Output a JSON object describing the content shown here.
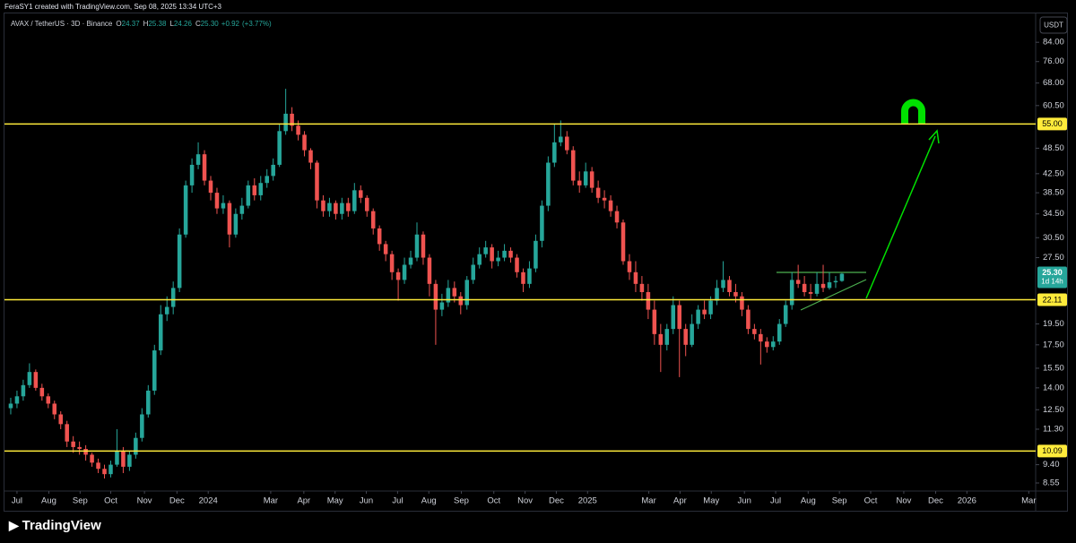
{
  "header": {
    "attribution": "FeraSY1 created with TradingView.com, Sep 08, 2025 13:34 UTC+3",
    "brand": "TradingView"
  },
  "chart_data": {
    "type": "candlestick",
    "symbol": "AVAX / TetherUS · 3D · Binance",
    "quote": [
      "O",
      "24.37",
      "H",
      "25.38",
      "L",
      "24.26",
      "C",
      "25.30",
      "+0.92",
      "(+3.77%)"
    ],
    "currency": "USDT",
    "log": true,
    "up_color": "#26a69a",
    "down_color": "#ef5350",
    "open": [
      12.6,
      12.9,
      13.4,
      14.2,
      15.2,
      14.0,
      13.4,
      12.9,
      12.2,
      11.6,
      10.6,
      10.3,
      10.2,
      9.9,
      9.5,
      9.2,
      8.95,
      9.4,
      10.1,
      9.3,
      9.9,
      10.8,
      12.2,
      13.8,
      17.0,
      20.5,
      21.3,
      23.5,
      31.0,
      40.0,
      44.5,
      47.0,
      41.0,
      38.5,
      35.5,
      36.5,
      31.0,
      34.5,
      36.0,
      40.0,
      38.0,
      40.5,
      42.0,
      44.5,
      53.0,
      58.0,
      54.5,
      52.0,
      48.0,
      45.0,
      37.0,
      35.0,
      36.5,
      34.5,
      36.5,
      35.0,
      39.0,
      37.5,
      35.0,
      32.0,
      29.5,
      28.0,
      25.5,
      24.5,
      26.5,
      27.5,
      31.0,
      27.5,
      24.0,
      21.0,
      21.8,
      23.5,
      22.5,
      21.5,
      24.5,
      26.5,
      28.0,
      29.0,
      27.0,
      27.5,
      28.5,
      27.5,
      25.5,
      24.0,
      26.0,
      30.0,
      36.0,
      45.0,
      50.0,
      51.5,
      48.0,
      41.0,
      40.0,
      43.0,
      39.5,
      37.5,
      37.0,
      35.0,
      33.0,
      27.0,
      25.5,
      24.0,
      23.0,
      21.0,
      18.5,
      17.5,
      19.0,
      21.5,
      19.0,
      17.5,
      19.5,
      21.0,
      20.5,
      22.0,
      23.5,
      24.5,
      23.0,
      22.5,
      21.0,
      19.0,
      18.5,
      17.8,
      17.3,
      17.8,
      19.5,
      21.5,
      24.5,
      24.0,
      23.0,
      22.8,
      24.0,
      23.5,
      24.2,
      24.37
    ],
    "high": [
      13.3,
      13.8,
      14.6,
      15.9,
      15.4,
      14.3,
      13.6,
      13.1,
      12.4,
      11.8,
      10.9,
      10.6,
      10.4,
      10.0,
      9.7,
      9.4,
      9.6,
      11.3,
      10.3,
      10.1,
      11.1,
      12.6,
      14.2,
      17.5,
      21.5,
      22.5,
      24.3,
      32.0,
      41.0,
      46.0,
      50.0,
      48.0,
      42.0,
      39.5,
      38.0,
      37.0,
      35.5,
      37.5,
      41.0,
      41.5,
      42.0,
      43.5,
      46.0,
      55.0,
      66.0,
      60.0,
      56.0,
      53.0,
      48.5,
      45.5,
      38.0,
      37.5,
      37.0,
      37.5,
      37.5,
      40.5,
      40.0,
      38.0,
      35.5,
      32.5,
      30.0,
      28.5,
      26.0,
      27.5,
      28.5,
      33.0,
      31.5,
      28.0,
      24.5,
      22.8,
      24.5,
      24.3,
      23.0,
      25.0,
      27.5,
      29.0,
      30.0,
      29.5,
      28.5,
      29.5,
      29.0,
      28.0,
      26.0,
      27.0,
      31.0,
      37.0,
      46.5,
      55.0,
      56.0,
      53.0,
      49.0,
      43.0,
      45.0,
      44.0,
      41.0,
      39.0,
      38.0,
      36.0,
      33.5,
      28.0,
      27.0,
      25.0,
      24.0,
      22.0,
      19.5,
      19.5,
      22.5,
      22.0,
      19.5,
      20.5,
      21.5,
      22.0,
      22.5,
      24.5,
      27.0,
      25.0,
      24.0,
      23.0,
      21.5,
      19.5,
      19.0,
      18.2,
      18.3,
      20.0,
      22.0,
      25.5,
      26.5,
      25.0,
      24.0,
      25.5,
      26.5,
      25.5,
      25.0,
      25.38
    ],
    "low": [
      12.2,
      12.6,
      13.1,
      14.0,
      13.8,
      13.1,
      12.6,
      11.9,
      11.3,
      10.3,
      10.0,
      9.9,
      9.6,
      9.3,
      9.0,
      8.75,
      8.8,
      9.3,
      9.0,
      9.1,
      9.7,
      10.6,
      12.0,
      13.5,
      16.6,
      19.8,
      20.5,
      23.0,
      30.5,
      38.5,
      43.5,
      40.0,
      37.0,
      34.5,
      34.5,
      29.0,
      30.5,
      33.5,
      35.5,
      37.0,
      37.0,
      39.5,
      41.0,
      44.0,
      52.0,
      53.0,
      50.5,
      46.5,
      43.5,
      35.5,
      34.0,
      34.0,
      33.5,
      33.5,
      34.0,
      34.5,
      36.5,
      34.0,
      31.0,
      28.5,
      27.0,
      24.5,
      22.0,
      24.0,
      26.0,
      27.0,
      26.5,
      22.5,
      17.5,
      20.3,
      21.3,
      21.8,
      20.5,
      21.0,
      24.0,
      26.0,
      27.5,
      26.0,
      26.3,
      27.0,
      26.8,
      24.8,
      23.0,
      23.5,
      25.5,
      29.0,
      35.0,
      44.0,
      49.0,
      47.0,
      40.0,
      38.5,
      39.5,
      38.5,
      36.5,
      35.5,
      34.0,
      32.0,
      26.5,
      24.5,
      23.0,
      22.0,
      20.0,
      17.5,
      15.2,
      17.0,
      18.5,
      14.8,
      16.5,
      17.3,
      19.0,
      20.0,
      20.0,
      21.5,
      23.0,
      22.5,
      21.8,
      20.3,
      18.5,
      18.0,
      15.8,
      16.8,
      17.0,
      17.5,
      19.2,
      21.0,
      23.5,
      22.5,
      22.0,
      22.5,
      23.0,
      23.3,
      23.5,
      24.26
    ],
    "close": [
      12.9,
      13.4,
      14.2,
      15.2,
      14.0,
      13.4,
      12.9,
      12.2,
      11.6,
      10.6,
      10.3,
      10.2,
      9.9,
      9.5,
      9.2,
      8.95,
      9.4,
      10.1,
      9.3,
      9.9,
      10.8,
      12.2,
      13.8,
      17.0,
      20.5,
      21.3,
      23.5,
      31.0,
      40.0,
      44.5,
      47.0,
      41.0,
      38.5,
      35.5,
      36.5,
      31.0,
      34.5,
      36.0,
      40.0,
      38.0,
      40.5,
      42.0,
      44.5,
      53.0,
      58.0,
      54.5,
      52.0,
      48.0,
      45.0,
      37.0,
      35.0,
      36.5,
      34.5,
      36.5,
      35.0,
      39.0,
      37.5,
      35.0,
      32.0,
      29.5,
      28.0,
      25.5,
      24.5,
      26.5,
      27.5,
      31.0,
      27.5,
      24.0,
      21.0,
      21.8,
      23.5,
      22.5,
      21.5,
      24.5,
      26.5,
      28.0,
      29.0,
      27.0,
      27.5,
      28.5,
      27.5,
      25.5,
      24.0,
      26.0,
      30.0,
      36.0,
      45.0,
      50.0,
      51.5,
      48.0,
      41.0,
      40.0,
      43.0,
      39.5,
      37.5,
      37.0,
      35.0,
      33.0,
      27.0,
      25.5,
      24.0,
      23.0,
      21.0,
      18.5,
      17.5,
      19.0,
      21.5,
      19.0,
      17.5,
      19.5,
      21.0,
      20.5,
      22.0,
      23.5,
      24.5,
      23.0,
      22.5,
      21.0,
      19.0,
      18.5,
      17.8,
      17.3,
      17.8,
      19.5,
      21.5,
      24.5,
      24.0,
      23.0,
      22.8,
      24.0,
      23.5,
      24.2,
      24.37,
      25.3
    ],
    "xlim": [
      -1,
      164
    ],
    "xticks": [
      {
        "value": 1,
        "label": "Jul"
      },
      {
        "value": 6.1,
        "label": "Aug"
      },
      {
        "value": 11.1,
        "label": "Sep"
      },
      {
        "value": 16,
        "label": "Oct"
      },
      {
        "value": 21.4,
        "label": "Nov"
      },
      {
        "value": 26.6,
        "label": "Dec"
      },
      {
        "value": 31.6,
        "label": "2024"
      },
      {
        "value": 41.6,
        "label": "Mar"
      },
      {
        "value": 46.9,
        "label": "Apr"
      },
      {
        "value": 51.9,
        "label": "May"
      },
      {
        "value": 56.9,
        "label": "Jun"
      },
      {
        "value": 61.9,
        "label": "Jul"
      },
      {
        "value": 66.9,
        "label": "Aug"
      },
      {
        "value": 72.1,
        "label": "Sep"
      },
      {
        "value": 77.3,
        "label": "Oct"
      },
      {
        "value": 82.3,
        "label": "Nov"
      },
      {
        "value": 87.3,
        "label": "Dec"
      },
      {
        "value": 92.3,
        "label": "2025"
      },
      {
        "value": 102.1,
        "label": "Mar"
      },
      {
        "value": 107.1,
        "label": "Apr"
      },
      {
        "value": 112.1,
        "label": "May"
      },
      {
        "value": 117.4,
        "label": "Jun"
      },
      {
        "value": 122.4,
        "label": "Jul"
      },
      {
        "value": 127.6,
        "label": "Aug"
      },
      {
        "value": 132.6,
        "label": "Sep"
      },
      {
        "value": 137.6,
        "label": "Oct"
      },
      {
        "value": 142.9,
        "label": "Nov"
      },
      {
        "value": 148,
        "label": "Dec"
      },
      {
        "value": 153,
        "label": "2026"
      },
      {
        "value": 162.9,
        "label": "Mar"
      }
    ],
    "ylim": [
      8.2,
      98
    ],
    "yticks": [
      {
        "value": 84,
        "label": "84.00"
      },
      {
        "value": 76,
        "label": "76.00"
      },
      {
        "value": 68,
        "label": "68.00"
      },
      {
        "value": 60.5,
        "label": "60.50"
      },
      {
        "value": 48.5,
        "label": "48.50"
      },
      {
        "value": 42.5,
        "label": "42.50"
      },
      {
        "value": 38.5,
        "label": "38.50"
      },
      {
        "value": 34.5,
        "label": "34.50"
      },
      {
        "value": 30.5,
        "label": "30.50"
      },
      {
        "value": 27.5,
        "label": "27.50"
      },
      {
        "value": 19.5,
        "label": "19.50"
      },
      {
        "value": 17.5,
        "label": "17.50"
      },
      {
        "value": 15.5,
        "label": "15.50"
      },
      {
        "value": 14,
        "label": "14.00"
      },
      {
        "value": 12.5,
        "label": "12.50"
      },
      {
        "value": 11.3,
        "label": "11.30"
      },
      {
        "value": 9.4,
        "label": "9.40"
      },
      {
        "value": 8.55,
        "label": "8.55"
      }
    ],
    "level_color": "#ffeb3b",
    "levels": [
      {
        "value": 55,
        "label": "55.00"
      },
      {
        "value": 22.11,
        "label": "22.11"
      },
      {
        "value": 10.09,
        "label": "10.09"
      }
    ],
    "last_price": {
      "value": 25.3,
      "label": "25.30",
      "countdown": "1d 14h"
    }
  }
}
